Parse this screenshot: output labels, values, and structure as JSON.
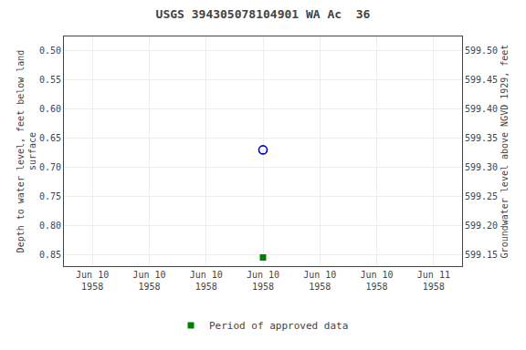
{
  "chart_data": {
    "type": "scatter",
    "title": "USGS 394305078104901 WA Ac  36",
    "ylabel": "Depth to water level, feet below land\nsurface",
    "y2label": "Groundwater level above NGVD 1929, feet",
    "categories": [
      "Jun 10\n1958",
      "Jun 10\n1958",
      "Jun 10\n1958",
      "Jun 10\n1958",
      "Jun 10\n1958",
      "Jun 10\n1958",
      "Jun 11\n1958"
    ],
    "series": [
      {
        "values": [
          null,
          null,
          null,
          0.67,
          null,
          null,
          null
        ],
        "color": "#0000cc",
        "marker": "open_circle"
      },
      {
        "name": "Period of approved data",
        "values": [
          null,
          null,
          null,
          0.855,
          null,
          null,
          null
        ],
        "color": "#008000",
        "marker": "square"
      }
    ],
    "ylim": [
      0.87,
      0.475
    ],
    "yticks": [
      {
        "value": 0.5,
        "label": "0.50"
      },
      0.55,
      {
        "value": 0.6,
        "label": "0.60"
      },
      0.65,
      {
        "value": 0.7,
        "label": "0.70"
      },
      0.75,
      {
        "value": 0.8,
        "label": "0.80"
      },
      0.85
    ],
    "y2lim": [
      599.13,
      599.525
    ],
    "y2ticks": [
      {
        "value": 599.5,
        "label": "599.50"
      },
      599.45,
      {
        "value": 599.4,
        "label": "599.40"
      },
      599.35,
      {
        "value": 599.3,
        "label": "599.30"
      },
      599.25,
      {
        "value": 599.2,
        "label": "599.20"
      },
      599.15
    ],
    "grid": true,
    "legend": "bottom"
  }
}
